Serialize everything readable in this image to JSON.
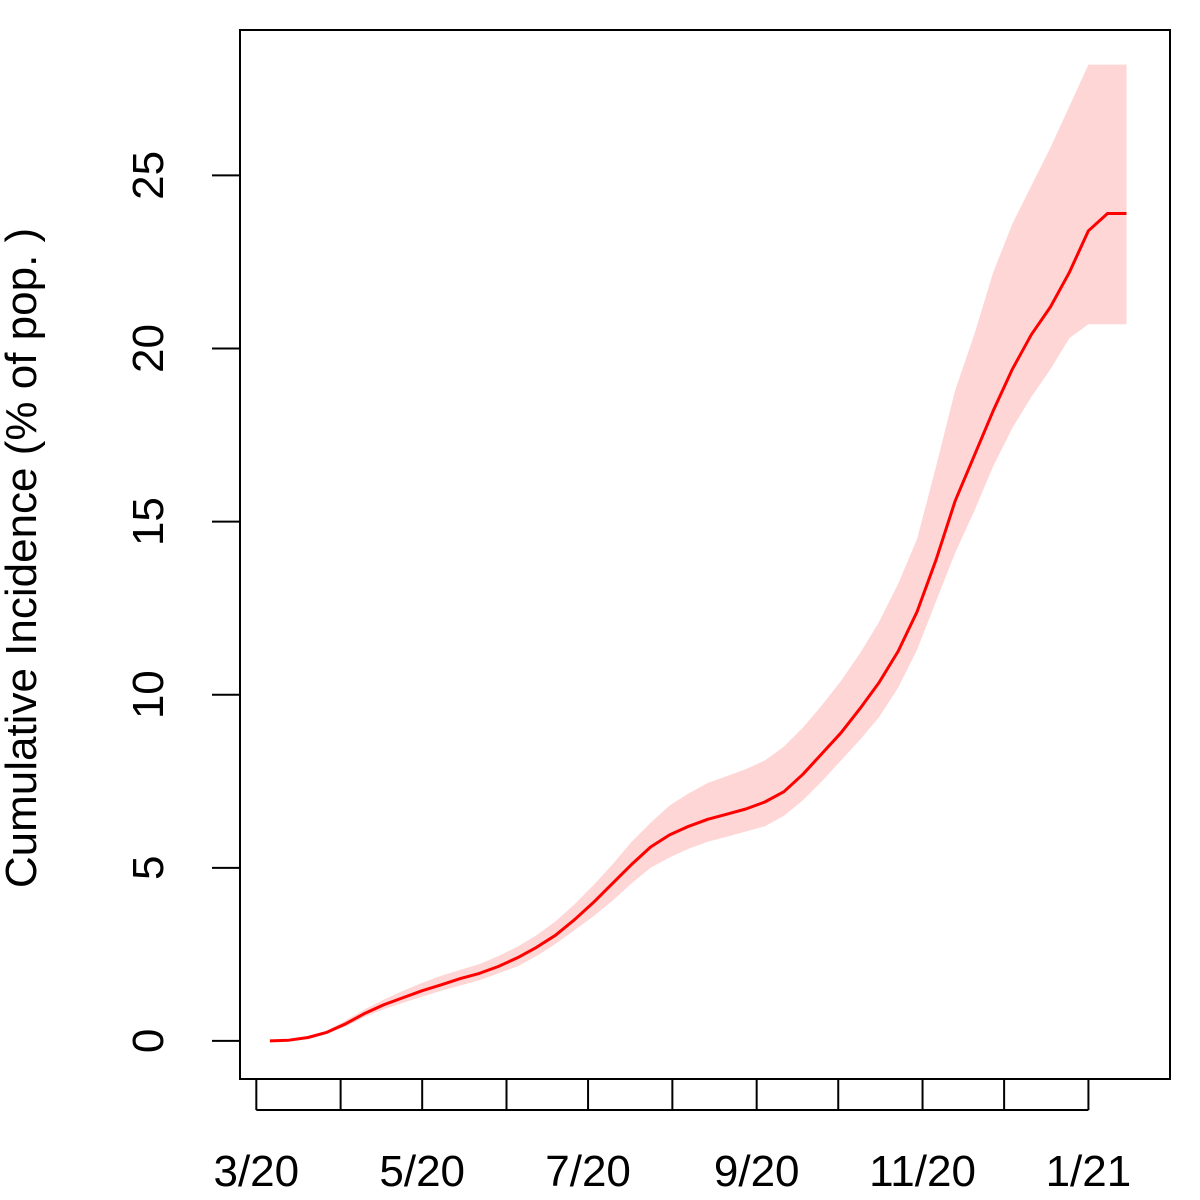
{
  "chart_data": {
    "type": "line",
    "title": "",
    "xlabel": "",
    "ylabel": "Cumulative Incidence (% of pop. )",
    "x_ticks": {
      "values": [
        "2020-03-01",
        "2020-04-01",
        "2020-05-01",
        "2020-06-01",
        "2020-07-01",
        "2020-08-01",
        "2020-09-01",
        "2020-10-01",
        "2020-11-01",
        "2020-12-01",
        "2021-01-01"
      ],
      "labels": [
        "3/20",
        "",
        "5/20",
        "",
        "7/20",
        "",
        "9/20",
        "",
        "11/20",
        "",
        "1/21"
      ]
    },
    "y_ticks": [
      0,
      5,
      10,
      15,
      20,
      25
    ],
    "xlim": [
      "2020-02-24",
      "2021-01-31"
    ],
    "ylim": [
      -1.1,
      29.2
    ],
    "grid": false,
    "legend": "none",
    "colors": {
      "line": "#ff0000",
      "band": "#ffd6d6"
    },
    "series": [
      {
        "x": [
          "2020-03-06",
          "2020-03-13",
          "2020-03-20",
          "2020-03-27",
          "2020-04-03",
          "2020-04-10",
          "2020-04-17",
          "2020-04-24",
          "2020-05-01",
          "2020-05-08",
          "2020-05-15",
          "2020-05-22",
          "2020-05-29",
          "2020-06-05",
          "2020-06-12",
          "2020-06-19",
          "2020-06-26",
          "2020-07-03",
          "2020-07-10",
          "2020-07-17",
          "2020-07-24",
          "2020-07-31",
          "2020-08-07",
          "2020-08-14",
          "2020-08-21",
          "2020-08-28",
          "2020-09-04",
          "2020-09-11",
          "2020-09-18",
          "2020-09-25",
          "2020-10-02",
          "2020-10-09",
          "2020-10-16",
          "2020-10-23",
          "2020-10-30",
          "2020-11-06",
          "2020-11-13",
          "2020-11-20",
          "2020-11-27",
          "2020-12-04",
          "2020-12-11",
          "2020-12-18",
          "2020-12-25",
          "2021-01-01",
          "2021-01-08",
          "2021-01-15"
        ],
        "values": [
          0.0,
          0.02,
          0.1,
          0.25,
          0.5,
          0.8,
          1.05,
          1.25,
          1.45,
          1.62,
          1.8,
          1.95,
          2.15,
          2.4,
          2.7,
          3.05,
          3.5,
          4.0,
          4.55,
          5.1,
          5.6,
          5.95,
          6.2,
          6.4,
          6.55,
          6.7,
          6.9,
          7.2,
          7.7,
          8.3,
          8.9,
          9.6,
          10.35,
          11.25,
          12.4,
          13.9,
          15.6,
          16.9,
          18.2,
          19.4,
          20.4,
          21.2,
          22.2,
          23.4,
          23.9,
          23.9
        ],
        "lower": [
          0.0,
          0.02,
          0.08,
          0.22,
          0.42,
          0.7,
          0.92,
          1.1,
          1.28,
          1.45,
          1.6,
          1.75,
          1.95,
          2.15,
          2.45,
          2.8,
          3.2,
          3.6,
          4.05,
          4.55,
          5.0,
          5.3,
          5.55,
          5.75,
          5.9,
          6.05,
          6.2,
          6.5,
          6.95,
          7.5,
          8.1,
          8.7,
          9.35,
          10.2,
          11.3,
          12.7,
          14.1,
          15.3,
          16.6,
          17.7,
          18.6,
          19.4,
          20.3,
          20.7,
          20.7,
          20.7
        ],
        "upper": [
          0.0,
          0.02,
          0.12,
          0.3,
          0.6,
          0.92,
          1.2,
          1.45,
          1.68,
          1.88,
          2.05,
          2.22,
          2.45,
          2.72,
          3.05,
          3.45,
          3.95,
          4.5,
          5.1,
          5.75,
          6.3,
          6.8,
          7.15,
          7.45,
          7.65,
          7.85,
          8.1,
          8.5,
          9.05,
          9.7,
          10.4,
          11.2,
          12.1,
          13.2,
          14.5,
          16.6,
          18.8,
          20.4,
          22.2,
          23.6,
          24.7,
          25.8,
          27.0,
          28.2,
          28.2,
          28.2
        ]
      }
    ]
  }
}
